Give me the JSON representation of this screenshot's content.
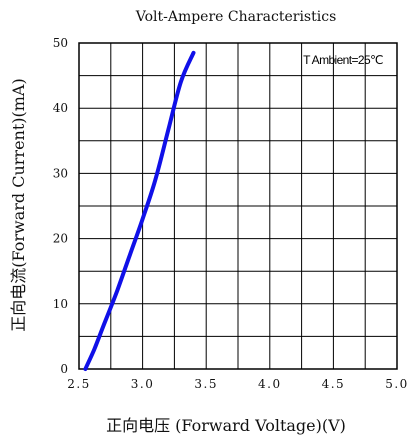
{
  "chart_data": {
    "type": "line",
    "title": "Volt-Ampere Characteristics",
    "xlabel": "正向电压 (Forward Voltage)(V)",
    "ylabel": "正向电流(Forward Current)(mA)",
    "annotation": "T Ambient=25℃",
    "xlim": [
      2.5,
      5.0
    ],
    "ylim": [
      0,
      50
    ],
    "x_ticks": [
      2.5,
      3.0,
      3.5,
      4.0,
      4.5,
      5.0
    ],
    "x_tick_labels": [
      "2.5",
      "3.0",
      "3.5",
      "4.0",
      "4.5",
      "5.0"
    ],
    "y_ticks": [
      0,
      10,
      20,
      30,
      40,
      50
    ],
    "y_tick_labels": [
      "0",
      "10",
      "20",
      "30",
      "40",
      "50"
    ],
    "grid": true,
    "series": [
      {
        "color": "#1010e8",
        "x": [
          2.55,
          2.62,
          2.7,
          2.8,
          2.9,
          3.0,
          3.1,
          3.2,
          3.3,
          3.4
        ],
        "y": [
          0.0,
          3.0,
          7.0,
          12.0,
          17.5,
          23.0,
          29.0,
          36.5,
          44.0,
          48.5
        ]
      }
    ]
  }
}
